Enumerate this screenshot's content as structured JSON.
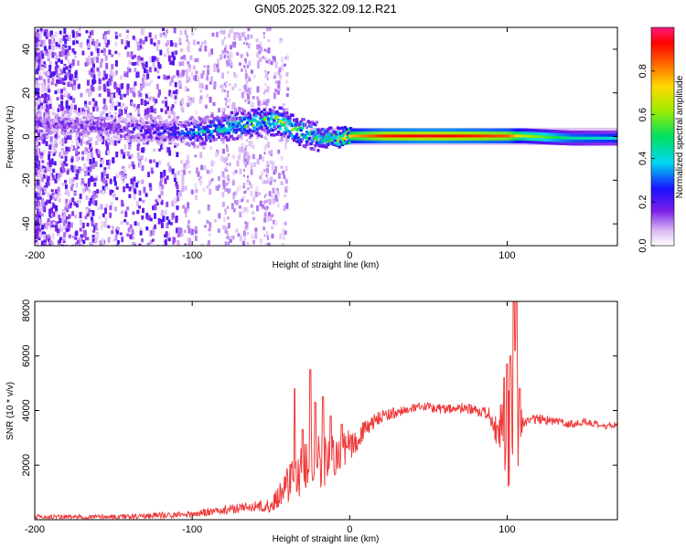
{
  "title": "GN05.2025.322.09.12.R21",
  "chart_data": [
    {
      "type": "heatmap",
      "name": "spectrogram",
      "xlabel": "Height of straight line (km)",
      "ylabel": "Frequency (Hz)",
      "xlim": [
        -200,
        170
      ],
      "ylim": [
        -50,
        50
      ],
      "xticks": [
        -200,
        -100,
        0,
        100
      ],
      "yticks": [
        -40,
        -20,
        0,
        20,
        40
      ],
      "colorbar": {
        "label": "Normalized spectral amplitude",
        "range": [
          0,
          1
        ],
        "ticks": [
          "0.0",
          "0.2",
          "0.4",
          "0.6",
          "0.8"
        ]
      },
      "ridge": [
        {
          "x": -200,
          "f": 6,
          "amp": 0.15
        },
        {
          "x": -150,
          "f": 4,
          "amp": 0.18
        },
        {
          "x": -110,
          "f": 2,
          "amp": 0.25
        },
        {
          "x": -100,
          "f": 2,
          "amp": 0.35
        },
        {
          "x": -80,
          "f": 4,
          "amp": 0.45
        },
        {
          "x": -60,
          "f": 6,
          "amp": 0.5
        },
        {
          "x": -45,
          "f": 7,
          "amp": 0.55
        },
        {
          "x": -35,
          "f": 3,
          "amp": 0.5
        },
        {
          "x": -25,
          "f": 0,
          "amp": 0.45
        },
        {
          "x": -10,
          "f": -1,
          "amp": 0.55
        },
        {
          "x": 0,
          "f": 0,
          "amp": 0.75
        },
        {
          "x": 20,
          "f": 0,
          "amp": 0.9
        },
        {
          "x": 50,
          "f": 0,
          "amp": 0.95
        },
        {
          "x": 80,
          "f": 0,
          "amp": 0.9
        },
        {
          "x": 100,
          "f": 0,
          "amp": 0.85
        },
        {
          "x": 110,
          "f": 0,
          "amp": 0.65
        },
        {
          "x": 140,
          "f": -1,
          "amp": 0.45
        },
        {
          "x": 170,
          "f": -1,
          "amp": 0.4
        }
      ]
    },
    {
      "type": "line",
      "name": "snr",
      "xlabel": "Height of straight line (km)",
      "ylabel": "SNR (10 * v/v)",
      "xlim": [
        -200,
        170
      ],
      "ylim": [
        0,
        8000
      ],
      "xticks": [
        -200,
        -100,
        0,
        100
      ],
      "yticks": [
        2000,
        4000,
        6000,
        8000
      ],
      "color": "#ef3a3a",
      "envelope": {
        "x": [
          -200,
          -150,
          -100,
          -80,
          -60,
          -50,
          -40,
          -30,
          -20,
          -10,
          0,
          10,
          20,
          30,
          40,
          50,
          60,
          70,
          80,
          90,
          95,
          100,
          103,
          105,
          107,
          110,
          120,
          130,
          140,
          150,
          160,
          170
        ],
        "y": [
          100,
          100,
          200,
          350,
          500,
          500,
          1300,
          1800,
          2100,
          2300,
          2700,
          3300,
          3800,
          3950,
          4050,
          4150,
          4050,
          4100,
          4000,
          3700,
          3300,
          3100,
          3000,
          3050,
          3150,
          3600,
          3700,
          3600,
          3500,
          3600,
          3400,
          3500
        ]
      },
      "noise": {
        "x": [
          -200,
          -100,
          -60,
          -50,
          -40,
          -30,
          -20,
          -10,
          0,
          10,
          20,
          30,
          50,
          80,
          90,
          95,
          100,
          105,
          107,
          110,
          130,
          170
        ],
        "y": [
          80,
          120,
          200,
          250,
          700,
          1000,
          1100,
          800,
          600,
          350,
          250,
          200,
          180,
          200,
          400,
          1000,
          1800,
          3000,
          1500,
          200,
          150,
          120
        ]
      },
      "spikes": [
        {
          "x": -35,
          "y": 4800
        },
        {
          "x": -30,
          "y": 3300
        },
        {
          "x": -25,
          "y": 5500
        },
        {
          "x": -22,
          "y": 4300
        },
        {
          "x": -17,
          "y": 4500
        },
        {
          "x": -12,
          "y": 3800
        },
        {
          "x": -5,
          "y": 3500
        },
        {
          "x": 98,
          "y": 5200
        },
        {
          "x": 100,
          "y": 5700
        },
        {
          "x": 102,
          "y": 6000
        },
        {
          "x": 104,
          "y": 8000
        },
        {
          "x": 105,
          "y": 6200
        },
        {
          "x": 106,
          "y": 8000
        },
        {
          "x": 108,
          "y": 4800
        }
      ]
    }
  ]
}
